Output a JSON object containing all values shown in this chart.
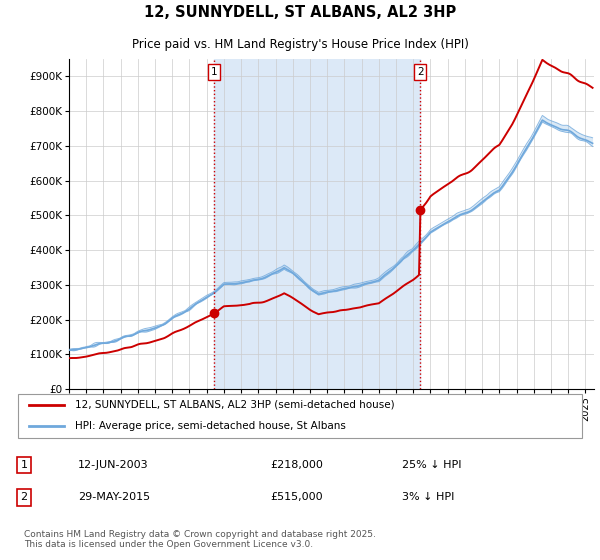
{
  "title": "12, SUNNYDELL, ST ALBANS, AL2 3HP",
  "subtitle": "Price paid vs. HM Land Registry's House Price Index (HPI)",
  "ylim": [
    0,
    950000
  ],
  "yticks": [
    0,
    100000,
    200000,
    300000,
    400000,
    500000,
    600000,
    700000,
    800000,
    900000
  ],
  "ytick_labels": [
    "£0",
    "£100K",
    "£200K",
    "£300K",
    "£400K",
    "£500K",
    "£600K",
    "£700K",
    "£800K",
    "£900K"
  ],
  "hpi_color": "#6fa8dc",
  "price_color": "#cc0000",
  "shade_color": "#dce9f7",
  "grid_color": "#cccccc",
  "purchase1_date": 2003.44,
  "purchase1_price": 218000,
  "purchase2_date": 2015.41,
  "purchase2_price": 515000,
  "legend_label_red": "12, SUNNYDELL, ST ALBANS, AL2 3HP (semi-detached house)",
  "legend_label_blue": "HPI: Average price, semi-detached house, St Albans",
  "footer_text": "Contains HM Land Registry data © Crown copyright and database right 2025.\nThis data is licensed under the Open Government Licence v3.0.",
  "table_row1": [
    "1",
    "12-JUN-2003",
    "£218,000",
    "25% ↓ HPI"
  ],
  "table_row2": [
    "2",
    "29-MAY-2015",
    "£515,000",
    "3% ↓ HPI"
  ],
  "xstart": 1995.0,
  "xend": 2025.5
}
